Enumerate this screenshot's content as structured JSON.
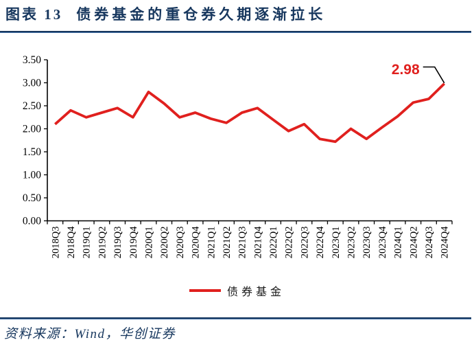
{
  "header": {
    "figure_label": "图表 13",
    "title": "债券基金的重仓券久期逐渐拉长"
  },
  "chart_data": {
    "type": "line",
    "title": "图表 13 债券基金的重仓券久期逐渐拉长",
    "categories": [
      "2018Q3",
      "2018Q4",
      "2019Q1",
      "2019Q2",
      "2019Q3",
      "2019Q4",
      "2020Q1",
      "2020Q2",
      "2020Q3",
      "2020Q4",
      "2021Q1",
      "2021Q2",
      "2021Q3",
      "2021Q4",
      "2022Q1",
      "2022Q2",
      "2022Q3",
      "2022Q4",
      "2023Q1",
      "2023Q2",
      "2023Q3",
      "2023Q4",
      "2024Q1",
      "2024Q2",
      "2024Q3",
      "2024Q4"
    ],
    "series": [
      {
        "name": "债券基金",
        "color": "#E0201E",
        "values": [
          2.1,
          2.4,
          2.25,
          2.35,
          2.45,
          2.25,
          2.8,
          2.55,
          2.25,
          2.35,
          2.22,
          2.13,
          2.35,
          2.45,
          2.2,
          1.95,
          2.1,
          1.78,
          1.72,
          2.0,
          1.78,
          2.03,
          2.27,
          2.57,
          2.65,
          2.98
        ]
      }
    ],
    "ylim": [
      0,
      3.5
    ],
    "ytick_step": 0.5,
    "ytick_labels": [
      "0.00",
      "0.50",
      "1.00",
      "1.50",
      "2.00",
      "2.50",
      "3.00",
      "3.50"
    ],
    "grid": false,
    "legend_position": "bottom",
    "annotation": {
      "text": "2.98",
      "series": 0,
      "index": 25,
      "color": "#E0201E"
    }
  },
  "footer": {
    "source": "资料来源：Wind，华创证券"
  },
  "colors": {
    "navy": "#17375E",
    "red": "#E0201E",
    "axis": "#000000"
  }
}
